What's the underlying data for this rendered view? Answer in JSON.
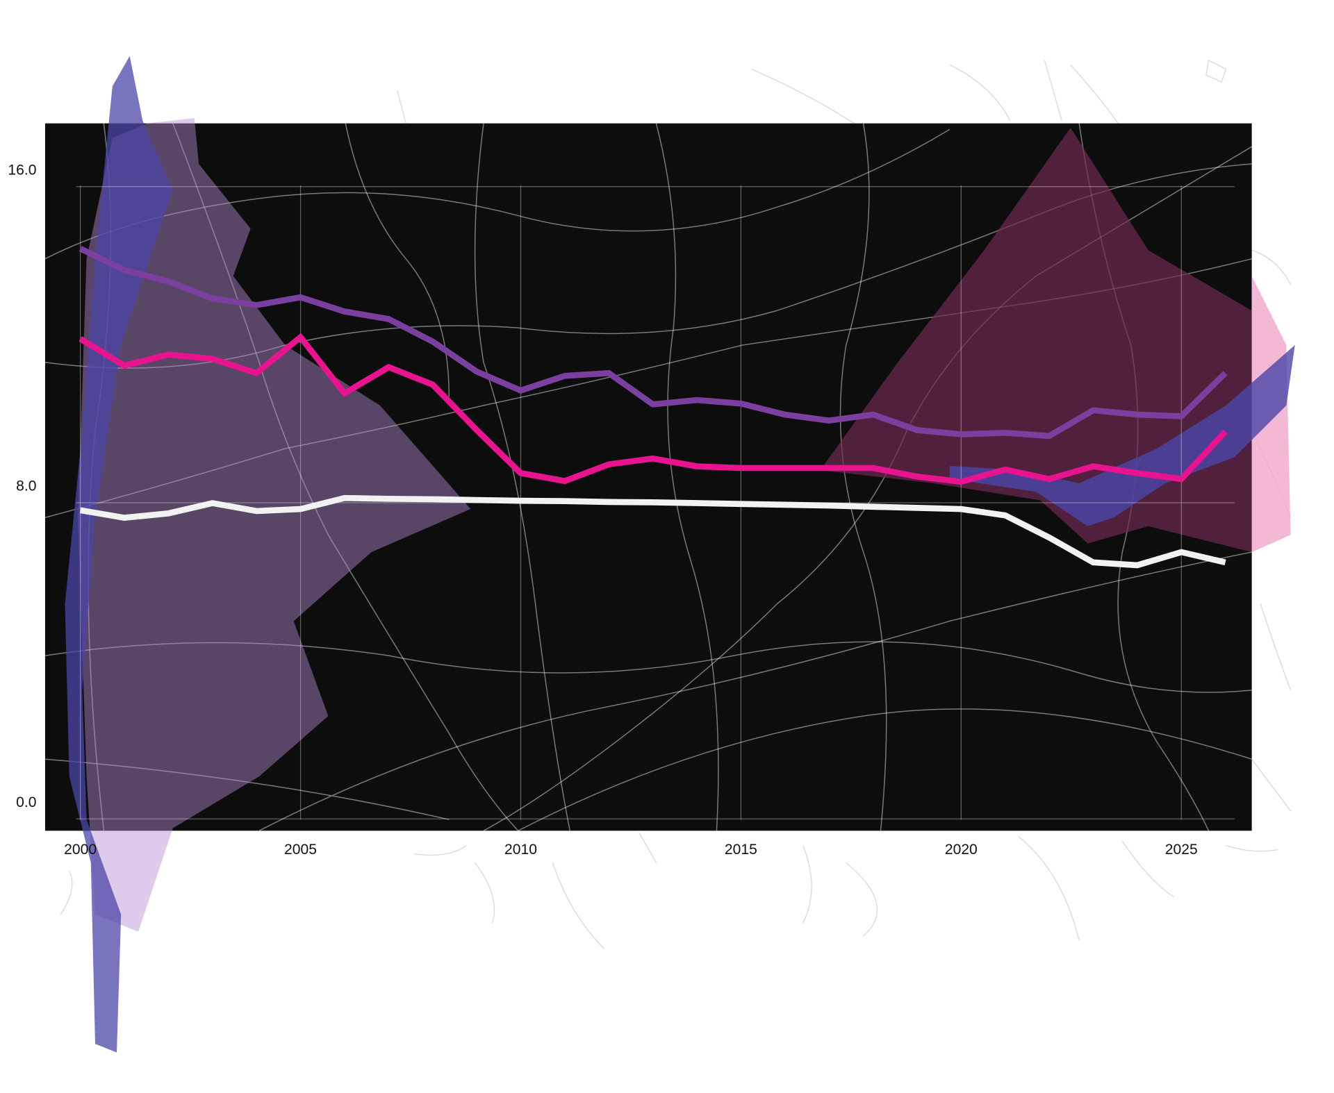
{
  "chart_data": {
    "type": "line",
    "x": [
      2000,
      2001,
      2002,
      2003,
      2004,
      2005,
      2006,
      2007,
      2008,
      2009,
      2010,
      2011,
      2012,
      2013,
      2014,
      2015,
      2016,
      2017,
      2018,
      2019,
      2020,
      2021,
      2022,
      2023,
      2024,
      2025,
      2026
    ],
    "series": [
      {
        "color": "#7b3fa0",
        "values": [
          14.43,
          13.89,
          13.6,
          13.17,
          13.0,
          13.2,
          12.84,
          12.65,
          12.08,
          11.32,
          10.84,
          11.21,
          11.28,
          10.49,
          10.6,
          10.51,
          10.23,
          10.08,
          10.23,
          9.84,
          9.73,
          9.77,
          9.69,
          10.34,
          10.23,
          10.19,
          11.28
        ]
      },
      {
        "color": "#e8138f",
        "values": [
          12.15,
          11.47,
          11.75,
          11.64,
          11.28,
          12.19,
          10.77,
          11.43,
          10.99,
          9.84,
          8.75,
          8.55,
          8.97,
          9.12,
          8.92,
          8.88,
          8.88,
          8.88,
          8.88,
          8.66,
          8.53,
          8.84,
          8.6,
          8.92,
          8.75,
          8.6,
          9.8
        ]
      },
      {
        "color": "#f2f2f2",
        "values": [
          7.81,
          7.62,
          7.73,
          7.99,
          7.79,
          7.84,
          8.12,
          8.1,
          8.09,
          8.07,
          8.05,
          8.04,
          8.02,
          8.01,
          7.99,
          7.97,
          7.95,
          7.93,
          7.9,
          7.87,
          7.84,
          7.68,
          7.12,
          6.49,
          6.42,
          6.75,
          6.49
        ]
      }
    ],
    "xlim": [
      1999.2,
      2026.6
    ],
    "xticks": [
      2000,
      2005,
      2010,
      2015,
      2020,
      2025
    ],
    "ylim": [
      -0.3,
      17.6
    ],
    "yticks": [
      {
        "value": 0,
        "label": "0.0"
      },
      {
        "value": 8,
        "label": "8.0"
      },
      {
        "value": 16,
        "label": "16.0"
      }
    ],
    "grid": true
  }
}
